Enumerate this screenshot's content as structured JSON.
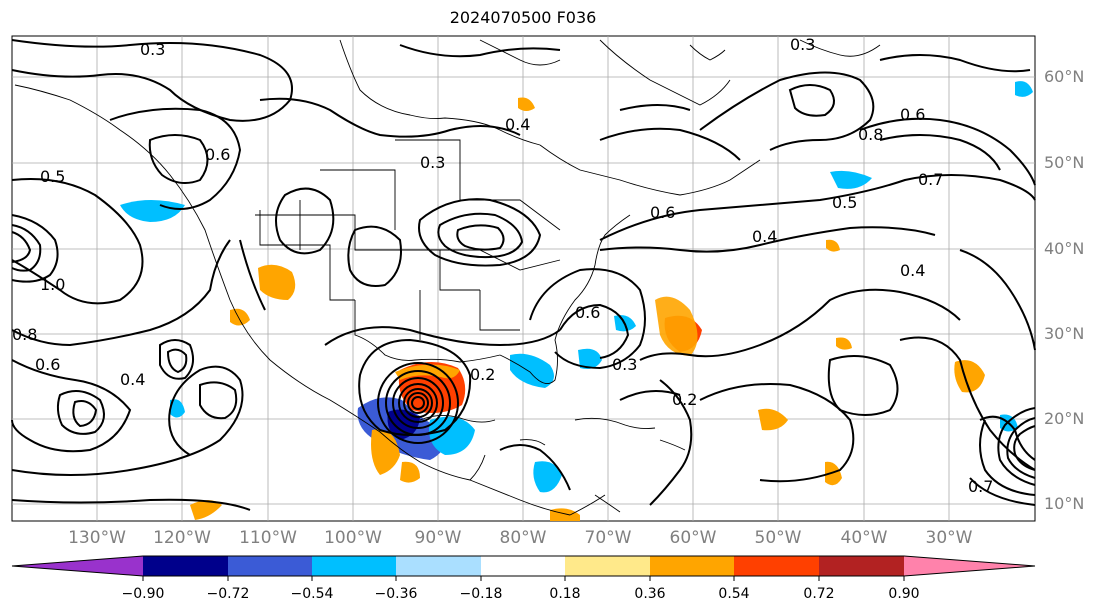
{
  "title": "2024070500 F036",
  "map": {
    "lat_labels": [
      "60°N",
      "50°N",
      "40°N",
      "30°N",
      "20°N",
      "10°N"
    ],
    "lon_labels": [
      "130°W",
      "120°W",
      "110°W",
      "100°W",
      "90°W",
      "80°W",
      "70°W",
      "60°W",
      "50°W",
      "40°W",
      "30°W"
    ],
    "contour_labels": [
      "0.3",
      "0.4",
      "0.5",
      "0.6",
      "0.8",
      "1.0",
      "0.2",
      "0.7",
      "0.3",
      "0.6",
      "0.4",
      "0.3",
      "0.6",
      "0.2",
      "0.4",
      "0.5",
      "0.4",
      "0.6",
      "0.6",
      "0.7",
      "0.8",
      "0.3"
    ],
    "colors": {
      "coast": "#000000",
      "grid": "#999999",
      "contour": "#000000"
    }
  },
  "colorbar": {
    "ticks": [
      "−0.90",
      "−0.72",
      "−0.54",
      "−0.36",
      "−0.18",
      "0.18",
      "0.36",
      "0.54",
      "0.72",
      "0.90"
    ],
    "colors": [
      "#9932cc",
      "#00008b",
      "#3b5bd6",
      "#00bfff",
      "#aadfff",
      "#ffffff",
      "#ffe98a",
      "#ffa500",
      "#ff4000",
      "#b22222",
      "#ff82ab"
    ]
  }
}
